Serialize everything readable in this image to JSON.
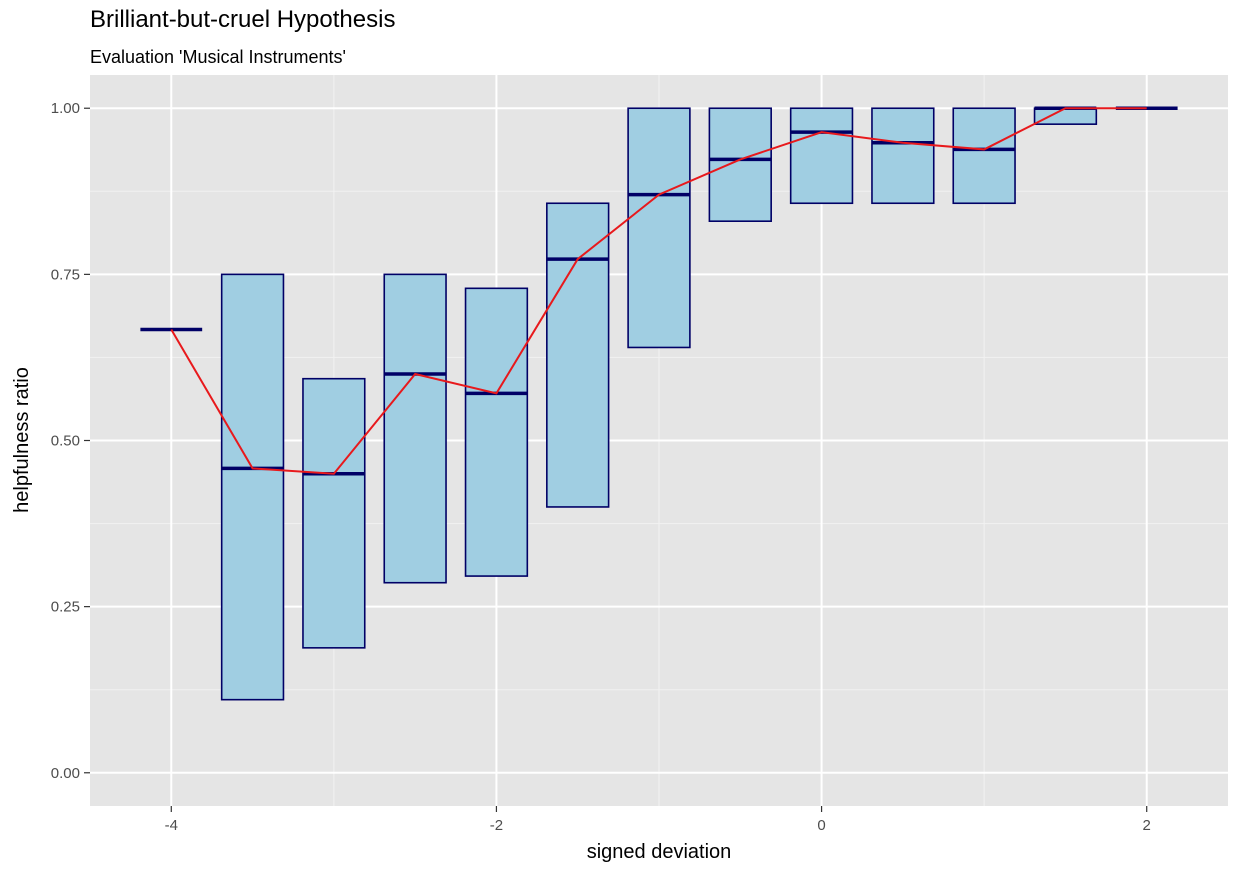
{
  "chart_data": {
    "type": "box",
    "title": "Brilliant-but-cruel Hypothesis",
    "subtitle": "Evaluation 'Musical Instruments'",
    "xlabel": "signed deviation",
    "ylabel": "helpfulness ratio",
    "xlim": [
      -4.5,
      2.5
    ],
    "ylim": [
      -0.05,
      1.05
    ],
    "x_ticks": [
      -4,
      -2,
      0,
      2
    ],
    "x_tick_labels": [
      "-4",
      "-2",
      "0",
      "2"
    ],
    "y_ticks": [
      0,
      0.25,
      0.5,
      0.75,
      1.0
    ],
    "y_tick_labels": [
      "0.00",
      "0.25",
      "0.50",
      "0.75",
      "1.00"
    ],
    "grid": true,
    "box_fill": "#a0cee2",
    "box_stroke": "#000066",
    "line_color": "#e8191c",
    "panel_bg": "#e5e5e5",
    "boxes": [
      {
        "x": -4.0,
        "lower": 0.667,
        "median": 0.667,
        "upper": 0.667
      },
      {
        "x": -3.5,
        "lower": 0.11,
        "median": 0.458,
        "upper": 0.75
      },
      {
        "x": -3.0,
        "lower": 0.188,
        "median": 0.45,
        "upper": 0.593
      },
      {
        "x": -2.5,
        "lower": 0.286,
        "median": 0.6,
        "upper": 0.75
      },
      {
        "x": -2.0,
        "lower": 0.296,
        "median": 0.571,
        "upper": 0.729
      },
      {
        "x": -1.5,
        "lower": 0.4,
        "median": 0.773,
        "upper": 0.857
      },
      {
        "x": -1.0,
        "lower": 0.64,
        "median": 0.87,
        "upper": 1.0
      },
      {
        "x": -0.5,
        "lower": 0.83,
        "median": 0.923,
        "upper": 1.0
      },
      {
        "x": 0.0,
        "lower": 0.857,
        "median": 0.964,
        "upper": 1.0
      },
      {
        "x": 0.5,
        "lower": 0.857,
        "median": 0.948,
        "upper": 1.0
      },
      {
        "x": 1.0,
        "lower": 0.857,
        "median": 0.938,
        "upper": 1.0
      },
      {
        "x": 1.5,
        "lower": 0.976,
        "median": 1.0,
        "upper": 1.0
      },
      {
        "x": 2.0,
        "lower": 1.0,
        "median": 1.0,
        "upper": 1.0
      }
    ],
    "mean_line": {
      "x": [
        -4.0,
        -3.5,
        -3.0,
        -2.5,
        -2.0,
        -1.5,
        -1.0,
        -0.5,
        0.0,
        0.5,
        1.0,
        1.5,
        2.0
      ],
      "y": [
        0.667,
        0.458,
        0.45,
        0.6,
        0.571,
        0.773,
        0.87,
        0.923,
        0.964,
        0.948,
        0.938,
        1.0,
        1.0
      ]
    }
  }
}
